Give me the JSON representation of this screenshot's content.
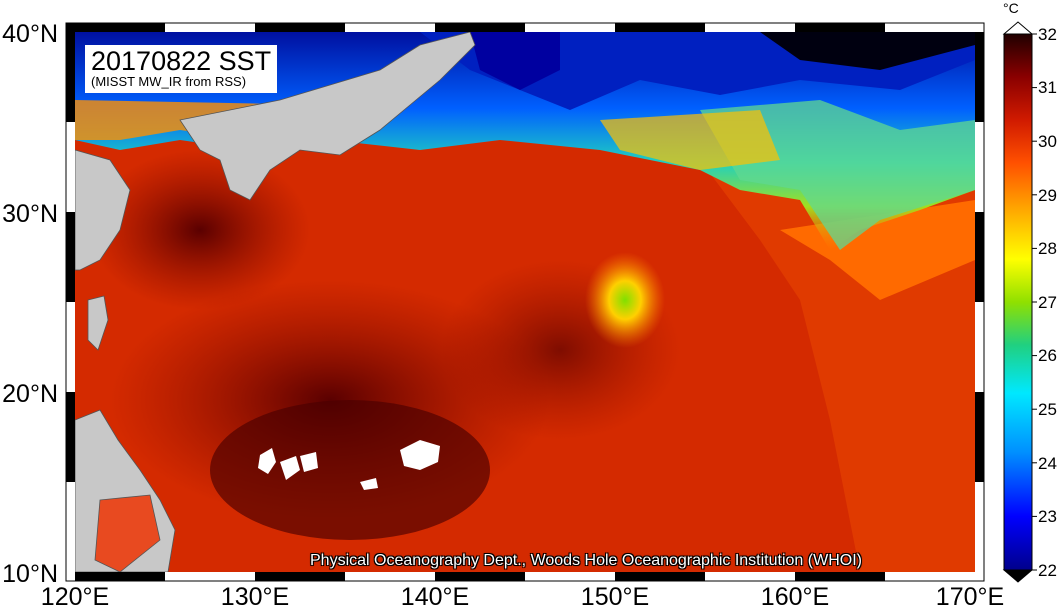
{
  "map": {
    "title": "20170822 SST",
    "subtitle": "(MISST MW_IR from RSS)",
    "credit": "Physical Oceanography Dept., Woods Hole Oceanographic Institution (WHOI)",
    "lat_range": [
      10,
      40
    ],
    "lon_range": [
      120,
      170
    ],
    "lat_labels": [
      "40°N",
      "30°N",
      "20°N",
      "10°N"
    ],
    "lon_labels": [
      "120°E",
      "130°E",
      "140°E",
      "150°E",
      "160°E",
      "170°E"
    ],
    "colorbar": {
      "unit": "°C",
      "min": 22,
      "max": 32,
      "ticks": [
        "32",
        "31",
        "30",
        "29",
        "28",
        "27",
        "26",
        "25",
        "24",
        "23",
        "22"
      ],
      "colors": [
        "#00008b",
        "#0000ff",
        "#0080ff",
        "#00e0ff",
        "#00d080",
        "#80e000",
        "#ffff00",
        "#ffb000",
        "#ff6000",
        "#e02000",
        "#a00000",
        "#200000"
      ]
    },
    "land_color": "#c8c8c8",
    "missing_color": "#ffffff"
  }
}
